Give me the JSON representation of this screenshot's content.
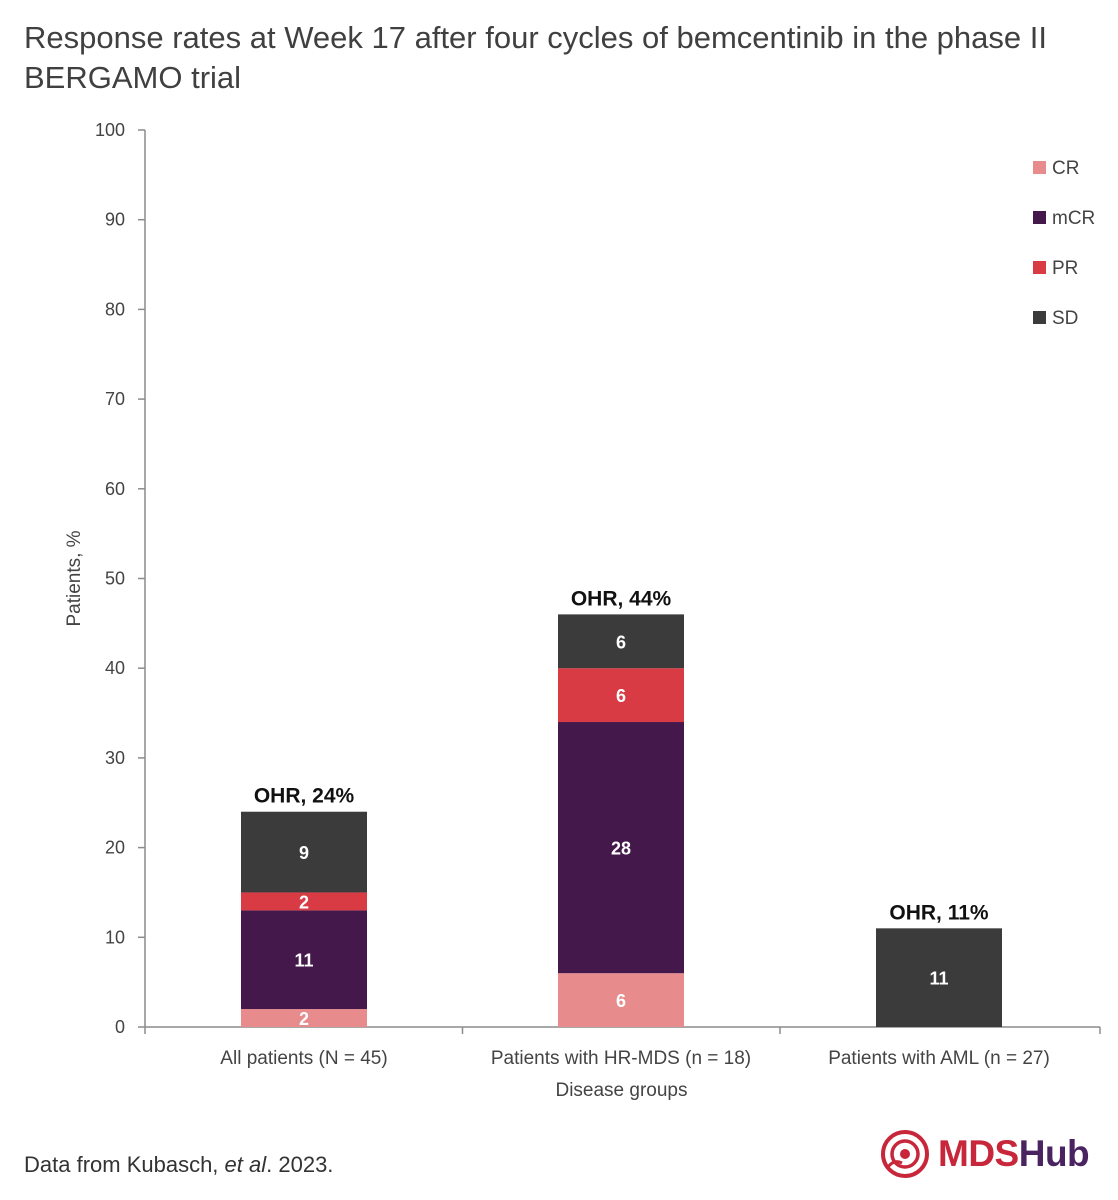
{
  "title": "Response rates at Week 17 after four cycles of bemcentinib in the phase II BERGAMO trial",
  "footnote": {
    "prefix": "Data from Kubasch, ",
    "italic": "et al",
    "suffix": ". 2023."
  },
  "logo": {
    "part1": "MDS",
    "part2": "Hub"
  },
  "colors": {
    "CR": "#e88b8c",
    "mCR": "#45184c",
    "PR": "#d83b44",
    "SD": "#3b3b3b",
    "axis": "#8c8c8c"
  },
  "chart_data": {
    "type": "bar",
    "stacked": true,
    "xlabel": "Disease groups",
    "ylabel": "Patients, %",
    "ylim": [
      0,
      100
    ],
    "yticks": [
      0,
      10,
      20,
      30,
      40,
      50,
      60,
      70,
      80,
      90,
      100
    ],
    "categories": [
      "All patients (N = 45)",
      "Patients with HR-MDS (n = 18)",
      "Patients with AML (n = 27)"
    ],
    "series": [
      {
        "name": "CR",
        "values": [
          2,
          6,
          0
        ]
      },
      {
        "name": "mCR",
        "values": [
          11,
          28,
          0
        ]
      },
      {
        "name": "PR",
        "values": [
          2,
          6,
          0
        ]
      },
      {
        "name": "SD",
        "values": [
          9,
          6,
          11
        ]
      }
    ],
    "totals_labels": [
      "OHR, 24%",
      "OHR, 44%",
      "OHR, 11%"
    ],
    "legend": [
      "CR",
      "mCR",
      "PR",
      "SD"
    ],
    "legend_position": "top-right"
  }
}
